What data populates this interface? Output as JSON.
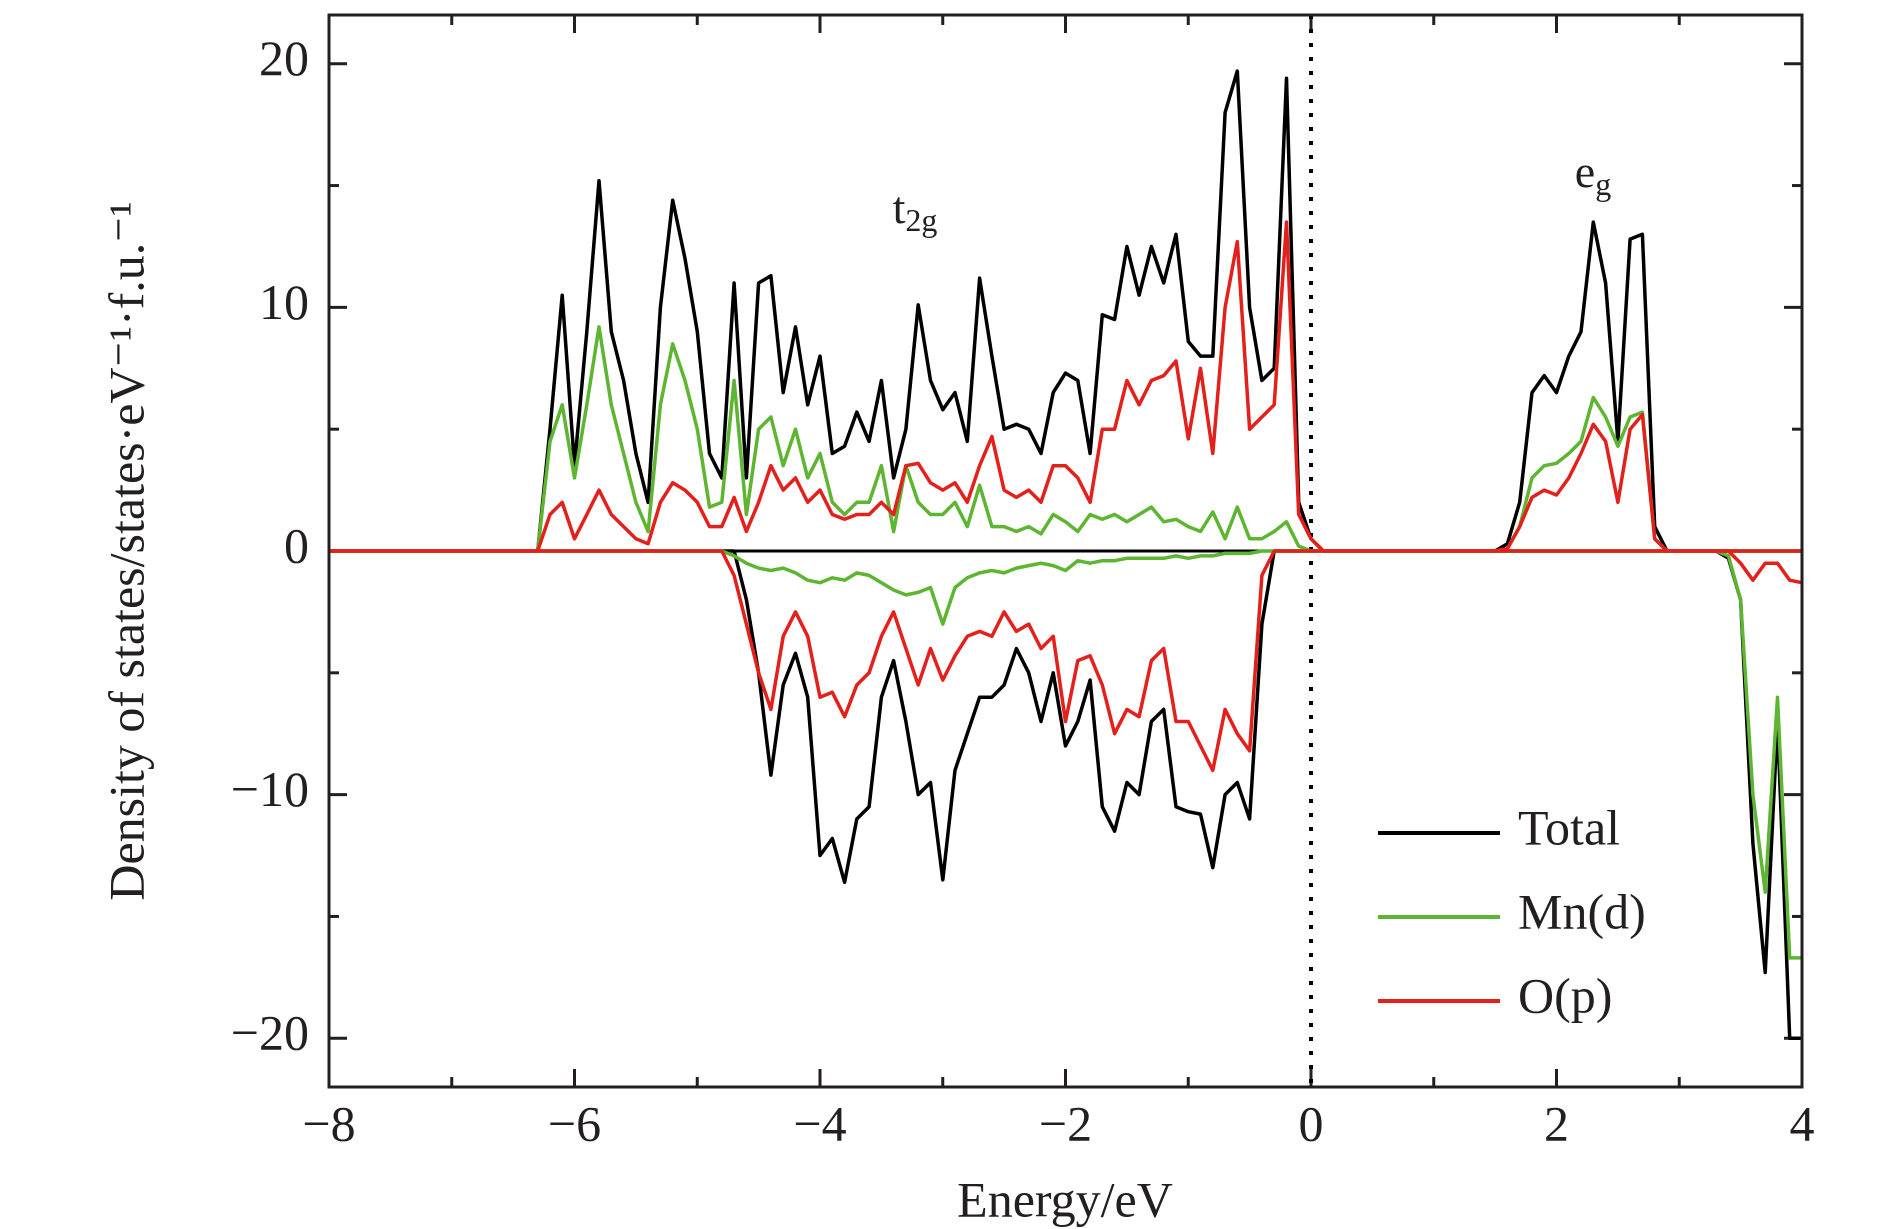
{
  "chart_data": {
    "type": "line",
    "xlabel": "Energy/eV",
    "ylabel": "Density of states/states·eV⁻¹·f.u.⁻¹",
    "annotations": [
      {
        "text": "t",
        "sub": "2g"
      },
      {
        "text": "e",
        "sub": "g"
      }
    ],
    "xlim": [
      -8,
      4
    ],
    "ylim": [
      -22,
      22
    ],
    "xticks": [
      {
        "value": -8,
        "label": "−8"
      },
      {
        "value": -6,
        "label": "−6"
      },
      {
        "value": -4,
        "label": "−4"
      },
      {
        "value": -2,
        "label": "−2"
      },
      0,
      2,
      4
    ],
    "yticks": [
      {
        "value": -20,
        "label": "−20"
      },
      {
        "value": -10,
        "label": "−10"
      },
      0,
      10,
      20
    ],
    "xminorticks": [
      -7,
      -5,
      -3,
      -1,
      1,
      3
    ],
    "yminorticks": [
      -15,
      -5,
      5,
      15
    ],
    "fermi_line": 0,
    "legend": "lower right",
    "x": [
      -8,
      -7.9,
      -7.8,
      -7.7,
      -7.6,
      -7.5,
      -7.4,
      -7.3,
      -7.2,
      -7.1,
      -7,
      -6.9,
      -6.8,
      -6.7,
      -6.6,
      -6.5,
      -6.4,
      -6.3,
      -6.2,
      -6.1,
      -6,
      -5.9,
      -5.8,
      -5.7,
      -5.6,
      -5.5,
      -5.4,
      -5.3,
      -5.2,
      -5.1,
      -5,
      -4.9,
      -4.8,
      -4.7,
      -4.6,
      -4.5,
      -4.4,
      -4.3,
      -4.2,
      -4.1,
      -4,
      -3.9,
      -3.8,
      -3.7,
      -3.6,
      -3.5,
      -3.4,
      -3.3,
      -3.2,
      -3.1,
      -3,
      -2.9,
      -2.8,
      -2.7,
      -2.6,
      -2.5,
      -2.4,
      -2.3,
      -2.2,
      -2.1,
      -2,
      -1.9,
      -1.8,
      -1.7,
      -1.6,
      -1.5,
      -1.4,
      -1.3,
      -1.2,
      -1.1,
      -1,
      -0.9,
      -0.8,
      -0.7,
      -0.6,
      -0.5,
      -0.4,
      -0.3,
      -0.2,
      -0.1,
      0,
      0.1,
      0.2,
      0.3,
      0.4,
      0.5,
      0.6,
      0.7,
      0.8,
      0.9,
      1,
      1.1,
      1.2,
      1.3,
      1.4,
      1.5,
      1.6,
      1.7,
      1.8,
      1.9,
      2,
      2.1,
      2.2,
      2.3,
      2.4,
      2.5,
      2.6,
      2.7,
      2.8,
      2.9,
      3,
      3.1,
      3.2,
      3.3,
      3.4,
      3.5,
      3.6,
      3.7,
      3.8,
      3.9,
      4
    ],
    "series": [
      {
        "name": "Total",
        "color": "#000000",
        "values": [
          0,
          0,
          0,
          0,
          0,
          0,
          0,
          0,
          0,
          0,
          0,
          0,
          0,
          0,
          0,
          0,
          0,
          0,
          5,
          10.5,
          3.5,
          9,
          15.2,
          9,
          7,
          4,
          2,
          10,
          14.4,
          12,
          9,
          4,
          3,
          11,
          3,
          11,
          11.3,
          6.5,
          9.2,
          6,
          8,
          4,
          4.3,
          5.7,
          4.5,
          7,
          3,
          5,
          10.1,
          7,
          5.8,
          6.5,
          4.5,
          11.2,
          8,
          5,
          5.2,
          5,
          4,
          6.5,
          7.3,
          7,
          4,
          9.7,
          9.5,
          12.5,
          10.5,
          12.5,
          11,
          13,
          8.6,
          8,
          8,
          18,
          19.7,
          10,
          7,
          7.5,
          19.4,
          2,
          0.5,
          0,
          0,
          0,
          0,
          0,
          0,
          0,
          0,
          0,
          0,
          0,
          0,
          0,
          0,
          0,
          0.3,
          2,
          6.5,
          7.2,
          6.5,
          8,
          9,
          13.5,
          11,
          4.5,
          12.8,
          13,
          1,
          0,
          0,
          0,
          0,
          0,
          0,
          0,
          0,
          0,
          0,
          0,
          0
        ],
        "values_down": [
          0,
          0,
          0,
          0,
          0,
          0,
          0,
          0,
          0,
          0,
          0,
          0,
          0,
          0,
          0,
          0,
          0,
          0,
          0,
          0,
          0,
          0,
          0,
          0,
          0,
          0,
          0,
          0,
          0,
          0,
          0,
          0,
          0,
          0,
          -2,
          -5,
          -9.2,
          -5.5,
          -4.2,
          -6,
          -12.5,
          -11.8,
          -13.6,
          -11,
          -10.5,
          -6,
          -4.5,
          -7,
          -10,
          -9.5,
          -13.5,
          -9,
          -7.5,
          -6,
          -6,
          -5.5,
          -4,
          -5,
          -7,
          -5,
          -8,
          -7,
          -5.3,
          -10.5,
          -11.5,
          -9.5,
          -10,
          -7,
          -6.5,
          -10.5,
          -10.7,
          -10.8,
          -13,
          -10,
          -9.5,
          -11,
          -3,
          0,
          0,
          0,
          0,
          0,
          0,
          0,
          0,
          0,
          0,
          0,
          0,
          0,
          0,
          0,
          0,
          0,
          0,
          0,
          0,
          0,
          0,
          0,
          0,
          0,
          0,
          0,
          0,
          0,
          0,
          0,
          0,
          0,
          0,
          0,
          0,
          0,
          -0.3,
          -2,
          -12,
          -17.3,
          -7,
          -20,
          -20
        ]
      },
      {
        "name": "Mn(d)",
        "color": "#5db531",
        "values": [
          0,
          0,
          0,
          0,
          0,
          0,
          0,
          0,
          0,
          0,
          0,
          0,
          0,
          0,
          0,
          0,
          0,
          0,
          4.5,
          6,
          3,
          6,
          9.2,
          6,
          4,
          2,
          0.8,
          6,
          8.5,
          7,
          5,
          1.8,
          2,
          7,
          1.5,
          5,
          5.5,
          3.5,
          5,
          3,
          4,
          2,
          1.5,
          2,
          2,
          3.5,
          0.8,
          3.5,
          2,
          1.5,
          1.5,
          2,
          1,
          2.7,
          1,
          1,
          0.8,
          1,
          0.7,
          1.5,
          1.2,
          0.8,
          1.5,
          1.3,
          1.5,
          1.2,
          1.5,
          1.8,
          1.2,
          1.3,
          1,
          0.8,
          1.6,
          0.5,
          1.8,
          0.5,
          0.5,
          0.8,
          1.2,
          0.2,
          0,
          0,
          0,
          0,
          0,
          0,
          0,
          0,
          0,
          0,
          0,
          0,
          0,
          0,
          0,
          0,
          0.1,
          1,
          3,
          3.5,
          3.6,
          4,
          4.5,
          6.3,
          5.5,
          4.3,
          5.5,
          5.7,
          0.5,
          0,
          0,
          0,
          0,
          0,
          0,
          0,
          0,
          0,
          0,
          0,
          0
        ],
        "values_down": [
          0,
          0,
          0,
          0,
          0,
          0,
          0,
          0,
          0,
          0,
          0,
          0,
          0,
          0,
          0,
          0,
          0,
          0,
          0,
          0,
          0,
          0,
          0,
          0,
          0,
          0,
          0,
          0,
          0,
          0,
          0,
          0,
          0,
          -0.2,
          -0.5,
          -0.7,
          -0.8,
          -0.7,
          -0.9,
          -1.2,
          -1.3,
          -1.1,
          -1.2,
          -0.9,
          -1,
          -1.3,
          -1.6,
          -1.8,
          -1.7,
          -1.5,
          -3,
          -1.5,
          -1.1,
          -0.9,
          -0.8,
          -0.9,
          -0.7,
          -0.6,
          -0.5,
          -0.6,
          -0.8,
          -0.4,
          -0.5,
          -0.4,
          -0.4,
          -0.3,
          -0.3,
          -0.3,
          -0.3,
          -0.2,
          -0.3,
          -0.2,
          -0.2,
          -0.1,
          -0.1,
          -0.1,
          0,
          0,
          0,
          0,
          0,
          0,
          0,
          0,
          0,
          0,
          0,
          0,
          0,
          0,
          0,
          0,
          0,
          0,
          0,
          0,
          0,
          0,
          0,
          0,
          0,
          0,
          0,
          0,
          0,
          0,
          0,
          0,
          0,
          0,
          0,
          0,
          0,
          0,
          -0.2,
          -2,
          -10,
          -14,
          -6,
          -16.7,
          -16.7
        ]
      },
      {
        "name": "O(p)",
        "color": "#e3201b",
        "values": [
          0,
          0,
          0,
          0,
          0,
          0,
          0,
          0,
          0,
          0,
          0,
          0,
          0,
          0,
          0,
          0,
          0,
          0,
          1.5,
          2,
          0.5,
          1.5,
          2.5,
          1.5,
          1,
          0.5,
          0.3,
          2,
          2.8,
          2.5,
          2,
          1,
          1,
          2.2,
          0.8,
          2,
          3.5,
          2.5,
          3,
          2,
          2.5,
          1.5,
          1.3,
          1.5,
          1.5,
          2,
          1.5,
          3.5,
          3.6,
          2.8,
          2.5,
          2.8,
          2,
          3.5,
          4.7,
          2.5,
          2.2,
          2.5,
          2,
          3.5,
          3.5,
          3,
          2,
          5,
          5,
          7,
          6,
          7,
          7.2,
          7.8,
          4.6,
          7.5,
          4,
          10,
          12.7,
          5,
          5.5,
          6,
          13.5,
          1.5,
          0.5,
          0,
          0,
          0,
          0,
          0,
          0,
          0,
          0,
          0,
          0,
          0,
          0,
          0,
          0,
          0,
          0.1,
          1,
          2.2,
          2.5,
          2.3,
          3,
          4,
          5.2,
          4.5,
          2,
          5,
          5.6,
          0.5,
          0,
          0,
          0,
          0,
          0,
          0,
          0,
          0,
          0,
          0,
          0,
          0
        ],
        "values_down": [
          0,
          0,
          0,
          0,
          0,
          0,
          0,
          0,
          0,
          0,
          0,
          0,
          0,
          0,
          0,
          0,
          0,
          0,
          0,
          0,
          0,
          0,
          0,
          0,
          0,
          0,
          0,
          0,
          0,
          0,
          0,
          0,
          0,
          -1,
          -3,
          -5,
          -6.5,
          -3.5,
          -2.5,
          -3.5,
          -6,
          -5.8,
          -6.8,
          -5.5,
          -5,
          -3.5,
          -2.5,
          -4,
          -5.5,
          -4,
          -5.3,
          -4.3,
          -3.5,
          -3.3,
          -3.5,
          -2.5,
          -3.3,
          -3,
          -4,
          -3.5,
          -7,
          -4.5,
          -4.3,
          -5.5,
          -7.5,
          -6.5,
          -6.8,
          -4.5,
          -4,
          -7,
          -7,
          -8,
          -9,
          -6.5,
          -7.5,
          -8.2,
          -1,
          0,
          0,
          0,
          0,
          0,
          0,
          0,
          0,
          0,
          0,
          0,
          0,
          0,
          0,
          0,
          0,
          0,
          0,
          0,
          0,
          0,
          0,
          0,
          0,
          0,
          0,
          0,
          0,
          0,
          0,
          0,
          0,
          0,
          0,
          0,
          0,
          0,
          0,
          -0.5,
          -1.2,
          -0.5,
          -0.5,
          -1.2,
          -1.3
        ]
      }
    ]
  }
}
